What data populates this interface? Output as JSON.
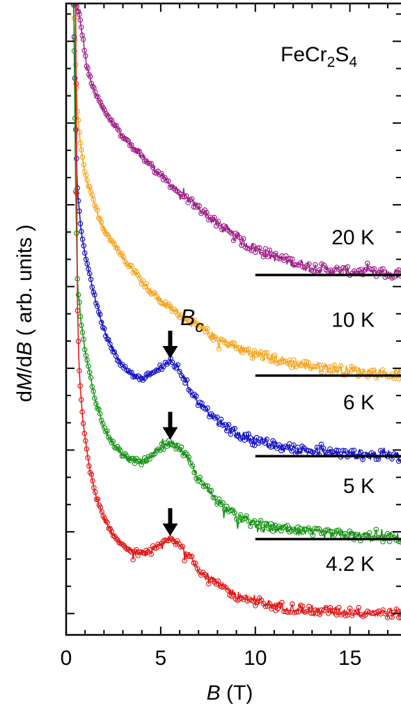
{
  "chart_data": {
    "type": "line",
    "title": "",
    "material": {
      "base": "FeCr",
      "sub1": "2",
      "mid": "S",
      "sub2": "4"
    },
    "xlabel": {
      "symbol": "B",
      "unit": " (T)"
    },
    "ylabel": {
      "pre": "d",
      "m": "M",
      "mid": "/d",
      "b": "B",
      "post": "  ( arb. units )"
    },
    "xlim": [
      0,
      17.7
    ],
    "x_ticks": [
      0,
      5,
      10,
      15
    ],
    "x_tick_labels": [
      "0",
      "5",
      "10",
      "15"
    ],
    "y_scale": "arbitrary (curves offset vertically)",
    "annotation": {
      "symbol": "B",
      "sub": "c"
    },
    "series": [
      {
        "name": "20 K",
        "color": "#a0218c",
        "baseline": 5.55,
        "points": [
          [
            0.5,
            10.0
          ],
          [
            0.7,
            9.8
          ],
          [
            0.9,
            9.4
          ],
          [
            1.1,
            8.95
          ],
          [
            1.5,
            8.55
          ],
          [
            2,
            8.25
          ],
          [
            3,
            7.82
          ],
          [
            4,
            7.5
          ],
          [
            5,
            7.18
          ],
          [
            6,
            6.9
          ],
          [
            7,
            6.65
          ],
          [
            8,
            6.38
          ],
          [
            9,
            6.15
          ],
          [
            10,
            5.98
          ],
          [
            11,
            5.85
          ],
          [
            12,
            5.75
          ],
          [
            13,
            5.68
          ],
          [
            14,
            5.63
          ],
          [
            15,
            5.6
          ],
          [
            16,
            5.58
          ],
          [
            17,
            5.57
          ],
          [
            17.7,
            5.56
          ]
        ]
      },
      {
        "name": "10 K",
        "color": "#f5a623",
        "baseline": 3.9,
        "points": [
          [
            0.4,
            10.0
          ],
          [
            0.5,
            9.0
          ],
          [
            0.6,
            8.2
          ],
          [
            0.8,
            7.6
          ],
          [
            1,
            7.2
          ],
          [
            1.5,
            6.7
          ],
          [
            2,
            6.3
          ],
          [
            3,
            5.85
          ],
          [
            4,
            5.45
          ],
          [
            5,
            5.12
          ],
          [
            6,
            4.9
          ],
          [
            7,
            4.7
          ],
          [
            8,
            4.5
          ],
          [
            9,
            4.36
          ],
          [
            10,
            4.25
          ],
          [
            11,
            4.18
          ],
          [
            12,
            4.1
          ],
          [
            13,
            4.05
          ],
          [
            14,
            4.01
          ],
          [
            15,
            3.98
          ],
          [
            16,
            3.95
          ],
          [
            17,
            3.93
          ],
          [
            17.7,
            3.92
          ]
        ]
      },
      {
        "name": "6 K",
        "color": "#1515c8",
        "baseline": 2.58,
        "points": [
          [
            0.4,
            10.0
          ],
          [
            0.5,
            8.0
          ],
          [
            0.6,
            6.9
          ],
          [
            0.8,
            6.25
          ],
          [
            1,
            5.9
          ],
          [
            1.5,
            5.2
          ],
          [
            2,
            4.65
          ],
          [
            2.5,
            4.3
          ],
          [
            3,
            4.05
          ],
          [
            3.5,
            3.9
          ],
          [
            4,
            3.87
          ],
          [
            4.5,
            3.9
          ],
          [
            5,
            4.05
          ],
          [
            5.5,
            4.13
          ],
          [
            6,
            4.0
          ],
          [
            6.5,
            3.7
          ],
          [
            7,
            3.45
          ],
          [
            8,
            3.15
          ],
          [
            9,
            2.95
          ],
          [
            10,
            2.83
          ],
          [
            11,
            2.75
          ],
          [
            12,
            2.7
          ],
          [
            13,
            2.66
          ],
          [
            14,
            2.63
          ],
          [
            15,
            2.61
          ],
          [
            16,
            2.6
          ],
          [
            17,
            2.59
          ],
          [
            17.7,
            2.58
          ]
        ]
      },
      {
        "name": "5 K",
        "color": "#1a9418",
        "baseline": 1.22,
        "points": [
          [
            0.4,
            10.0
          ],
          [
            0.5,
            7.0
          ],
          [
            0.6,
            5.4
          ],
          [
            0.8,
            4.75
          ],
          [
            1,
            4.3
          ],
          [
            1.5,
            3.55
          ],
          [
            2,
            3.05
          ],
          [
            2.5,
            2.78
          ],
          [
            3,
            2.6
          ],
          [
            3.5,
            2.5
          ],
          [
            4,
            2.48
          ],
          [
            4.5,
            2.55
          ],
          [
            5,
            2.72
          ],
          [
            5.5,
            2.8
          ],
          [
            6,
            2.72
          ],
          [
            6.5,
            2.5
          ],
          [
            7,
            2.2
          ],
          [
            8,
            1.85
          ],
          [
            9,
            1.6
          ],
          [
            10,
            1.47
          ],
          [
            11,
            1.4
          ],
          [
            12,
            1.35
          ],
          [
            13,
            1.32
          ],
          [
            14,
            1.3
          ],
          [
            15,
            1.28
          ],
          [
            16,
            1.26
          ],
          [
            17,
            1.25
          ],
          [
            17.7,
            1.24
          ]
        ]
      },
      {
        "name": "4.2 K",
        "color": "#e31a1a",
        "baseline": 0.0,
        "points": [
          [
            0.5,
            10.0
          ],
          [
            0.6,
            5.0
          ],
          [
            0.7,
            3.9
          ],
          [
            0.9,
            3.1
          ],
          [
            1.2,
            2.45
          ],
          [
            1.5,
            2.0
          ],
          [
            2,
            1.55
          ],
          [
            2.5,
            1.28
          ],
          [
            3,
            1.13
          ],
          [
            3.5,
            1.02
          ],
          [
            4,
            0.98
          ],
          [
            4.5,
            1.0
          ],
          [
            5,
            1.12
          ],
          [
            5.5,
            1.22
          ],
          [
            6,
            1.12
          ],
          [
            6.5,
            0.95
          ],
          [
            7,
            0.72
          ],
          [
            8,
            0.48
          ],
          [
            9,
            0.3
          ],
          [
            10,
            0.2
          ],
          [
            11,
            0.13
          ],
          [
            12,
            0.09
          ],
          [
            13,
            0.06
          ],
          [
            14,
            0.04
          ],
          [
            15,
            0.03
          ],
          [
            16,
            0.02
          ],
          [
            17,
            0.01
          ],
          [
            17.7,
            0.0
          ]
        ]
      }
    ],
    "label_positions_data": [
      {
        "series": 0,
        "x": 16.3,
        "y": 6.05
      },
      {
        "series": 1,
        "x": 16.3,
        "y": 4.7
      },
      {
        "series": 2,
        "x": 16.3,
        "y": 3.35
      },
      {
        "series": 3,
        "x": 16.3,
        "y": 1.98
      },
      {
        "series": 4,
        "x": 16.3,
        "y": 0.7
      }
    ],
    "arrows_data": [
      {
        "x": 5.5,
        "y_tip": 4.18
      },
      {
        "x": 5.5,
        "y_tip": 2.85
      },
      {
        "x": 5.5,
        "y_tip": 1.27
      }
    ],
    "ylim": [
      -0.35,
      10.0
    ]
  }
}
